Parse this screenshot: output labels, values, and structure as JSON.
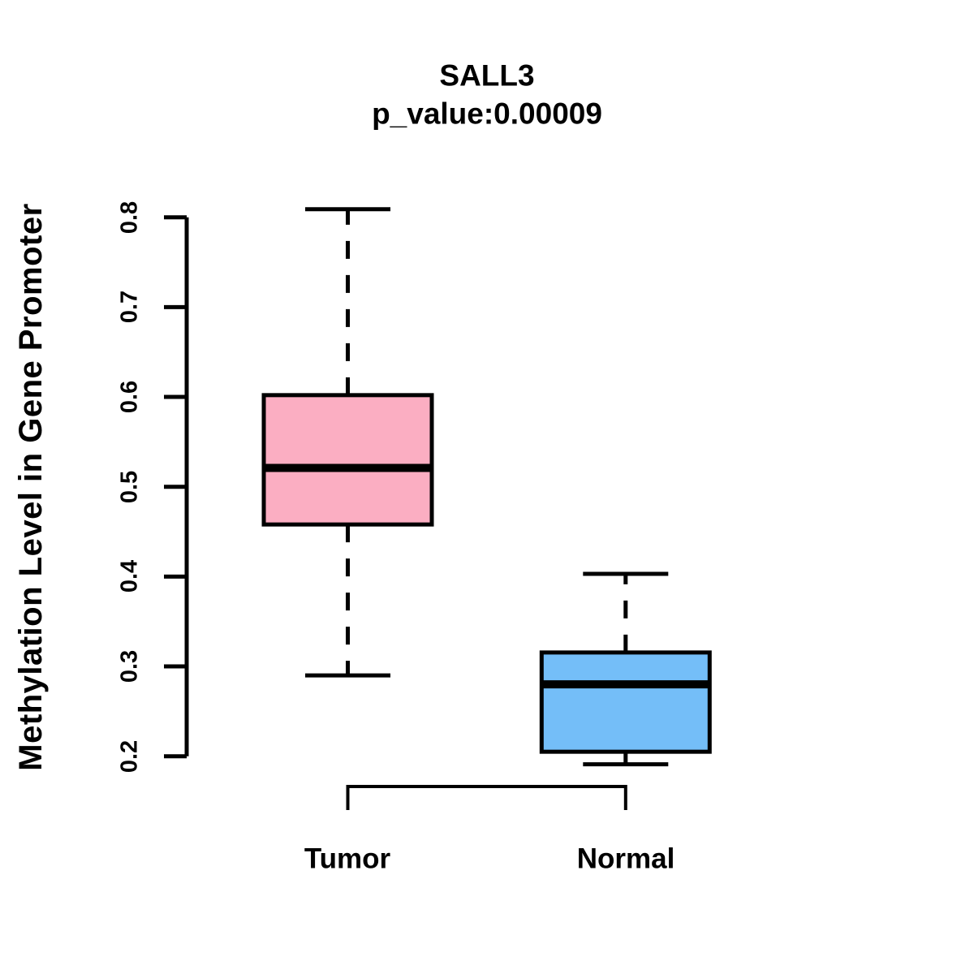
{
  "chart_data": {
    "type": "boxplot",
    "title": "SALL3",
    "subtitle": "p_value:0.00009",
    "p_value": "0.00009",
    "ylabel": "Methylation Level in Gene Promoter",
    "xlabel": "",
    "categories": [
      "Tumor",
      "Normal"
    ],
    "ylim": [
      0.2,
      0.8
    ],
    "yticks": [
      0.2,
      0.3,
      0.4,
      0.5,
      0.6,
      0.7,
      0.8
    ],
    "ytick_labels": [
      "0.2",
      "0.3",
      "0.4",
      "0.5",
      "0.6",
      "0.7",
      "0.8"
    ],
    "grid": false,
    "legend": "none",
    "whisker_style": "dashed",
    "series": [
      {
        "name": "Tumor",
        "whisker_low": 0.29,
        "q1": 0.458,
        "median": 0.521,
        "q3": 0.602,
        "whisker_high": 0.809,
        "fill_color": "#FBAEC2",
        "stroke_color": "#000000"
      },
      {
        "name": "Normal",
        "whisker_low": 0.191,
        "q1": 0.205,
        "median": 0.28,
        "q3": 0.3155,
        "whisker_high": 0.403,
        "fill_color": "#74BEF8",
        "stroke_color": "#000000"
      }
    ],
    "colors": {
      "background": "#FFFFFF",
      "axis": "#000000",
      "text": "#000000"
    }
  }
}
